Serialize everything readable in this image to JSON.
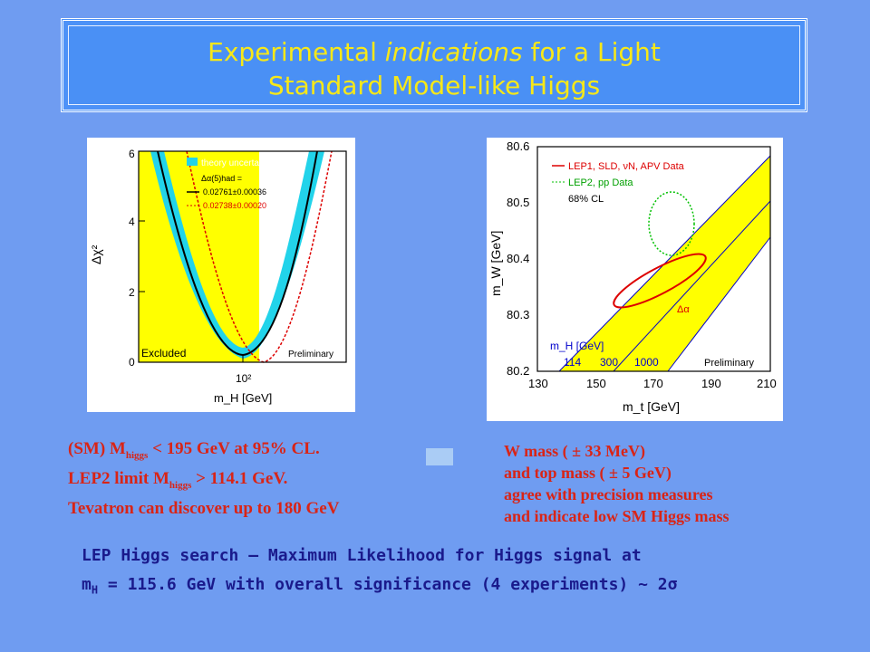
{
  "title": {
    "pre": "Experimental ",
    "em": "indications",
    "post": " for a Light",
    "line2": "Standard Model-like Higgs"
  },
  "left_plot": {
    "y_label": "Δχ²",
    "y_ticks": [
      "0",
      "2",
      "4",
      "6"
    ],
    "x_tick": "10²",
    "x_label": "m_H [GeV]",
    "legend": {
      "theory": "theory uncertainty",
      "alpha_label": "Δα(5)had =",
      "solid": "0.02761±0.00036",
      "dotted": "0.02738±0.00020"
    },
    "excluded": "Excluded",
    "preliminary": "Preliminary",
    "colors": {
      "band": "#22d3ea",
      "excluded": "#ffff00",
      "solid": "#000000",
      "dotted": "#dd0000"
    }
  },
  "right_plot": {
    "y_label": "m_W [GeV]",
    "y_ticks": [
      "80.2",
      "80.3",
      "80.4",
      "80.5",
      "80.6"
    ],
    "x_ticks": [
      "130",
      "150",
      "170",
      "190",
      "210"
    ],
    "x_label": "m_t [GeV]",
    "legend": {
      "red": "LEP1, SLD, νN, APV Data",
      "green": "LEP2, pp Data",
      "cl": "68% CL"
    },
    "delta_alpha": "Δα",
    "mh_label": "m_H [GeV]",
    "mh_values": [
      "114",
      "300",
      "1000"
    ],
    "preliminary": "Preliminary",
    "colors": {
      "band": "#ffff00",
      "red": "#dd0000",
      "green": "#00c000",
      "mh": "#0000cc"
    }
  },
  "left_text": {
    "line1_a": "(SM) M",
    "line1_sub": "higgs",
    "line1_b": " < 195 GeV at 95% CL.",
    "line2_a": "LEP2 limit M",
    "line2_sub": "higgs",
    "line2_b": " > 114.1 GeV.",
    "line3": "Tevatron can discover up to 180 GeV"
  },
  "right_text": {
    "line1": "W mass ( ± 33 MeV)",
    "line2": "and top mass ( ± 5 GeV)",
    "line3": "agree with precision measures",
    "line4": "and indicate low SM Higgs mass"
  },
  "bottom_text": {
    "line1": "LEP Higgs search – Maximum Likelihood for Higgs signal at",
    "line2_a": "m",
    "line2_sub": "H",
    "line2_b": " = 115.6 GeV with overall significance (4 experiments) ~ 2σ"
  }
}
